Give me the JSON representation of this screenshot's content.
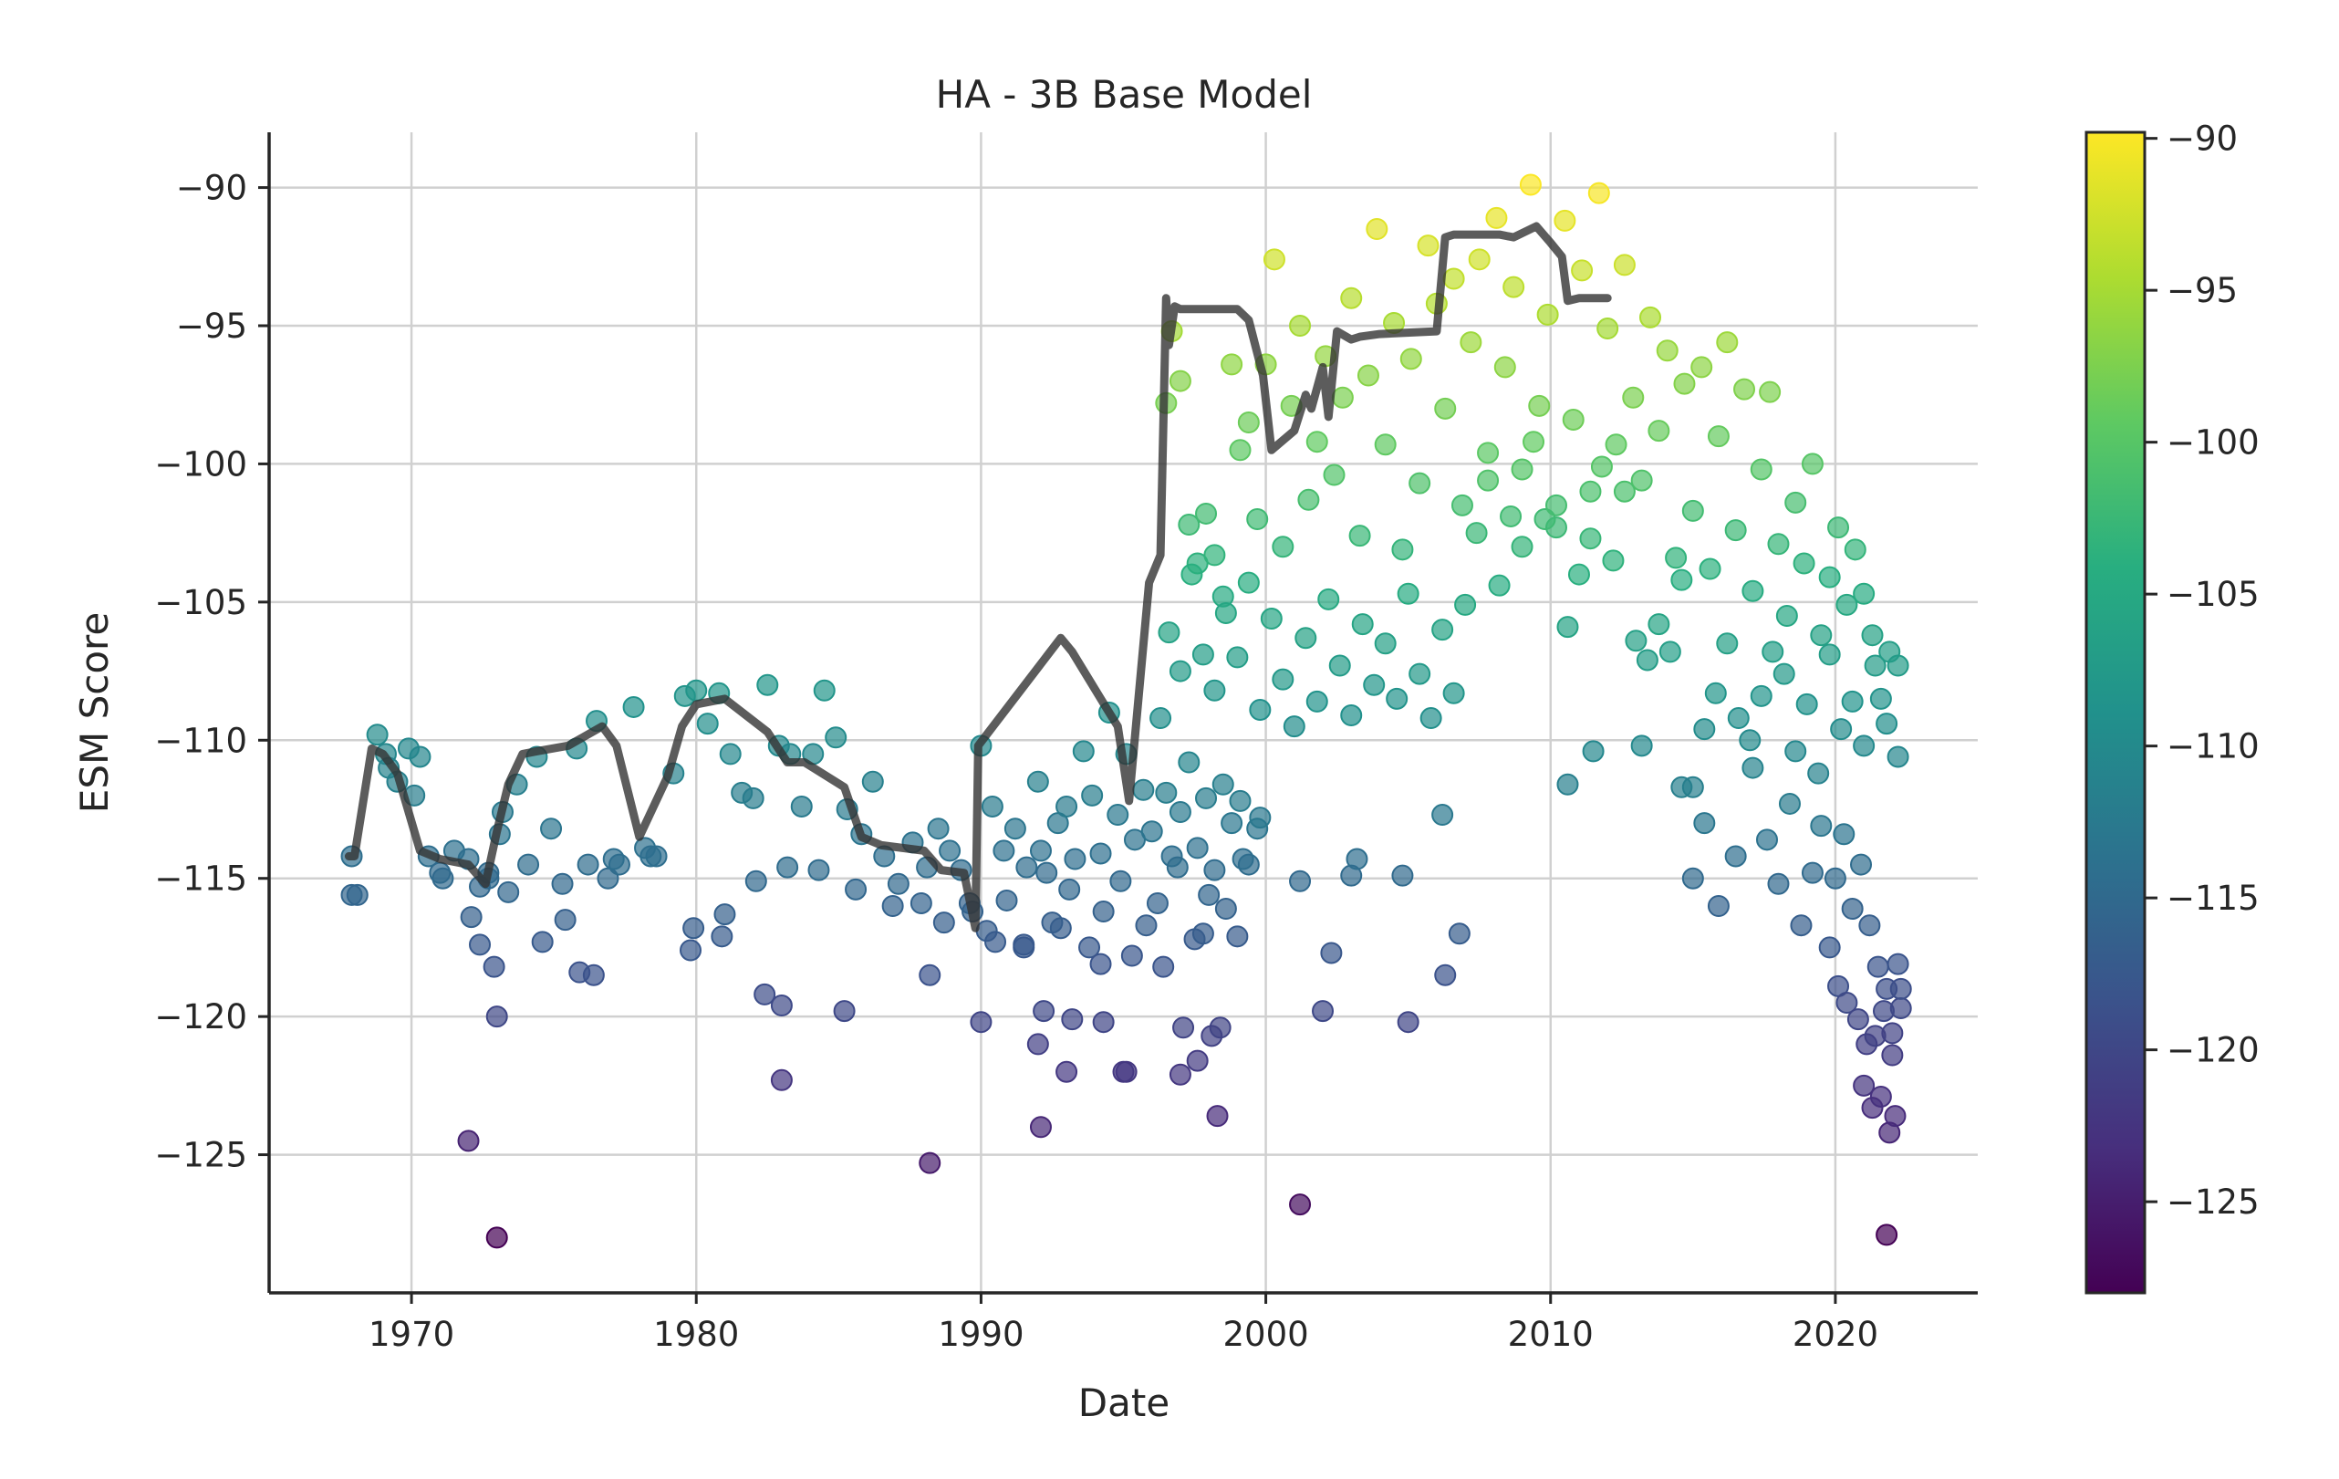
{
  "chart_data": {
    "type": "scatter",
    "title": "HA - 3B Base Model",
    "xlabel": "Date",
    "ylabel": "ESM Score",
    "xlim": [
      1965,
      2025
    ],
    "ylim": [
      -130,
      -88
    ],
    "x_ticks": [
      1970,
      1980,
      1990,
      2000,
      2010,
      2020
    ],
    "y_ticks": [
      -90,
      -95,
      -100,
      -105,
      -110,
      -115,
      -120,
      -125
    ],
    "x_tick_labels": [
      "1970",
      "1980",
      "1990",
      "2000",
      "2010",
      "2020"
    ],
    "y_tick_labels": [
      "−90",
      "−95",
      "−100",
      "−105",
      "−110",
      "−115",
      "−120",
      "−125"
    ],
    "grid": true,
    "colormap": "viridis",
    "colorbar": {
      "range": [
        -128,
        -89.8
      ],
      "ticks": [
        -90,
        -95,
        -100,
        -105,
        -110,
        -115,
        -120,
        -125
      ],
      "tick_labels": [
        "−90",
        "−95",
        "−100",
        "−105",
        "−110",
        "−115",
        "−120",
        "−125"
      ]
    },
    "colors": {
      "line": "#333333",
      "grid": "#d0d0d0",
      "axis": "#262626"
    },
    "trend_line": {
      "x": [
        1967.8,
        1968.0,
        1968.6,
        1969.0,
        1969.5,
        1970.3,
        1971.0,
        1972.0,
        1972.6,
        1973.0,
        1973.4,
        1973.9,
        1974.4,
        1975.5,
        1976.7,
        1977.2,
        1978.0,
        1979.0,
        1979.5,
        1980.0,
        1981.0,
        1982.5,
        1983.2,
        1983.8,
        1985.2,
        1985.8,
        1986.5,
        1988.0,
        1988.6,
        1989.4,
        1989.8,
        1989.9,
        1992.8,
        1993.2,
        1994.5,
        1994.8,
        1995.2,
        1995.9,
        1996.3,
        1996.5,
        1996.6,
        1996.8,
        1997.0,
        1999.0,
        1999.4,
        1999.9,
        2000.2,
        2001.0,
        2001.4,
        2001.6,
        2002.0,
        2002.2,
        2002.5,
        2003.0,
        2003.3,
        2004.0,
        2006.0,
        2006.3,
        2006.6,
        2008.2,
        2008.7,
        2009.5,
        2010.0,
        2010.4,
        2010.6,
        2011.0,
        2012.0
      ],
      "y": [
        -114.2,
        -114.2,
        -110.3,
        -110.5,
        -111.2,
        -114.0,
        -114.3,
        -114.5,
        -115.2,
        -113.3,
        -111.6,
        -110.5,
        -110.4,
        -110.2,
        -109.5,
        -110.2,
        -113.5,
        -111.3,
        -109.5,
        -108.7,
        -108.5,
        -109.7,
        -110.8,
        -110.8,
        -111.7,
        -113.5,
        -113.8,
        -114.0,
        -114.7,
        -114.8,
        -116.8,
        -110.2,
        -106.3,
        -106.8,
        -109.0,
        -109.5,
        -112.2,
        -104.3,
        -103.3,
        -94.0,
        -95.7,
        -94.3,
        -94.4,
        -94.4,
        -94.8,
        -96.8,
        -99.5,
        -98.8,
        -97.5,
        -98.0,
        -96.5,
        -98.3,
        -95.2,
        -95.5,
        -95.4,
        -95.3,
        -95.2,
        -91.8,
        -91.7,
        -91.7,
        -91.8,
        -91.4,
        -92.0,
        -92.5,
        -94.1,
        -94.0,
        -94.0
      ]
    },
    "series": [
      {
        "x": [
          1967.9,
          1968.1,
          1968.8,
          1969.1,
          1969.5,
          1969.9,
          1970.3,
          1970.6,
          1971.1,
          1971.5,
          1972.0,
          1972.4,
          1972.7,
          1973.1,
          1973.4,
          1973.7,
          1974.1,
          1974.4,
          1974.9,
          1975.3,
          1975.8,
          1976.2,
          1976.5,
          1976.9,
          1977.3,
          1977.8,
          1978.2,
          1978.6,
          1979.2,
          1979.6,
          1980.0,
          1980.4,
          1980.8,
          1981.2,
          1981.6,
          1982.0,
          1982.5,
          1982.9,
          1983.3,
          1983.7,
          1984.1,
          1984.5,
          1984.9,
          1985.3,
          1985.8,
          1986.2,
          1986.6,
          1987.1,
          1987.6,
          1988.1,
          1988.5,
          1988.9,
          1989.3,
          1989.7,
          1967.9,
          1969.2,
          1970.1,
          1971.0,
          1972.1,
          1972.7,
          1973.2,
          1974.6,
          1975.4,
          1976.4,
          1977.1,
          1978.4,
          1979.8,
          1980.9,
          1982.1,
          1983.2,
          1984.3,
          1985.6,
          1986.9,
          1987.9,
          1988.7,
          1989.6,
          1972.4,
          1972.9,
          1973.0,
          1975.9,
          1979.9,
          1981.0,
          1982.4,
          1983.0,
          1985.2,
          1988.2,
          1972.0,
          1973.0,
          1983.0,
          1988.2
        ],
        "y": [
          -114.2,
          -115.6,
          -109.8,
          -110.5,
          -111.5,
          -110.3,
          -110.6,
          -114.2,
          -115.0,
          -114.0,
          -114.3,
          -115.3,
          -114.8,
          -113.4,
          -115.5,
          -111.6,
          -114.5,
          -110.6,
          -113.2,
          -115.2,
          -110.3,
          -114.5,
          -109.3,
          -115.0,
          -114.5,
          -108.8,
          -113.9,
          -114.2,
          -111.2,
          -108.4,
          -108.2,
          -109.4,
          -108.3,
          -110.5,
          -111.9,
          -112.1,
          -108.0,
          -110.2,
          -110.5,
          -112.4,
          -110.5,
          -108.2,
          -109.9,
          -112.5,
          -113.4,
          -111.5,
          -114.2,
          -115.2,
          -113.7,
          -114.6,
          -113.2,
          -114.0,
          -114.7,
          -116.2,
          -115.6,
          -111.0,
          -112.0,
          -114.8,
          -116.4,
          -115.0,
          -112.6,
          -117.3,
          -116.5,
          -118.5,
          -114.3,
          -114.2,
          -117.6,
          -117.1,
          -115.1,
          -114.6,
          -114.7,
          -115.4,
          -116.0,
          -115.9,
          -116.6,
          -115.9,
          -117.4,
          -118.2,
          -120.0,
          -118.4,
          -116.8,
          -116.3,
          -119.2,
          -119.6,
          -119.8,
          -118.5,
          -124.5,
          -128.0,
          -122.3,
          -125.3
        ]
      },
      {
        "x": [
          1990.0,
          1990.4,
          1990.8,
          1991.2,
          1991.6,
          1992.0,
          1992.3,
          1992.7,
          1993.0,
          1993.3,
          1993.6,
          1993.9,
          1994.2,
          1994.5,
          1994.8,
          1995.1,
          1995.4,
          1995.7,
          1996.0,
          1996.3,
          1996.5,
          1996.7,
          1997.0,
          1997.3,
          1997.6,
          1997.9,
          1998.2,
          1998.5,
          1998.8,
          1999.1,
          1999.4,
          1999.7,
          1990.2,
          1990.9,
          1991.5,
          1992.1,
          1992.5,
          1993.1,
          1993.8,
          1994.3,
          1994.9,
          1995.3,
          1995.8,
          1996.2,
          1996.9,
          1997.5,
          1998.0,
          1998.6,
          1999.2,
          1999.8,
          1990.0,
          1992.0,
          1993.2,
          1994.3,
          1995.1,
          1997.1,
          1997.6,
          1998.1,
          1998.4,
          1992.1,
          1992.2,
          1993.0,
          1995.0,
          1997.0,
          1998.3,
          1990.5,
          1991.5,
          1992.8,
          1994.2,
          1996.4,
          1997.8,
          1999.0
        ],
        "y": [
          -110.2,
          -112.4,
          -114.0,
          -113.2,
          -114.6,
          -111.5,
          -114.8,
          -113.0,
          -112.4,
          -114.3,
          -110.4,
          -112.0,
          -114.1,
          -109.0,
          -112.7,
          -110.5,
          -113.6,
          -111.8,
          -113.3,
          -109.2,
          -111.9,
          -114.2,
          -112.6,
          -110.8,
          -113.9,
          -112.1,
          -114.7,
          -111.6,
          -113.0,
          -112.2,
          -114.5,
          -113.2,
          -116.9,
          -115.8,
          -117.4,
          -114.0,
          -116.6,
          -115.4,
          -117.5,
          -116.2,
          -115.1,
          -117.8,
          -116.7,
          -115.9,
          -114.6,
          -117.2,
          -115.6,
          -116.1,
          -114.3,
          -112.8,
          -120.2,
          -121.0,
          -120.1,
          -120.2,
          -122.0,
          -120.4,
          -121.6,
          -120.7,
          -120.4,
          -124.0,
          -119.8,
          -122.0,
          -122.0,
          -122.1,
          -123.6,
          -117.3,
          -117.5,
          -116.8,
          -118.1,
          -118.2,
          -117.0,
          -117.1
        ]
      },
      {
        "x": [
          1996.5,
          1996.7,
          1997.0,
          1997.3,
          1997.6,
          1997.9,
          1998.2,
          1998.5,
          1998.8,
          1999.1,
          1999.4,
          1999.7,
          2000.0,
          2000.3,
          2000.6,
          2000.9,
          2001.2,
          2001.5,
          2001.8,
          2002.1,
          2002.4,
          2002.7,
          2003.0,
          2003.3,
          2003.6,
          2003.9,
          2004.2,
          2004.5,
          2004.8,
          2005.1,
          2005.4,
          2005.7,
          2006.0,
          2006.3,
          2006.6,
          2006.9,
          2007.2,
          2007.5,
          2007.8,
          2008.1,
          2008.4,
          2008.7,
          2009.0,
          2009.3,
          2009.6,
          2009.9,
          2010.2,
          2010.5,
          2010.8,
          2011.1,
          2011.4,
          2011.7,
          2012.0,
          2012.3,
          2012.6,
          2012.9,
          2013.2,
          2013.5,
          2013.8,
          2014.1,
          2014.4,
          2014.7,
          2015.0,
          2015.3,
          2015.6,
          2015.9,
          2016.2,
          2016.5,
          2016.8,
          2017.1,
          2017.4,
          2017.7,
          2018.0,
          2018.3,
          2018.6,
          2018.9,
          2019.2,
          2019.5,
          2019.8,
          2020.1,
          2020.4,
          2020.7,
          2021.0,
          2021.3,
          2021.6,
          2021.9,
          2022.2
        ],
        "y": [
          -97.8,
          -95.2,
          -97.0,
          -102.2,
          -103.6,
          -101.8,
          -103.3,
          -104.8,
          -96.4,
          -99.5,
          -98.5,
          -102.0,
          -96.4,
          -92.6,
          -103.0,
          -97.9,
          -95.0,
          -101.3,
          -99.2,
          -96.1,
          -100.4,
          -97.6,
          -94.0,
          -102.6,
          -96.8,
          -91.5,
          -99.3,
          -94.9,
          -103.1,
          -96.2,
          -100.7,
          -92.1,
          -94.2,
          -98.0,
          -93.3,
          -101.5,
          -95.6,
          -92.6,
          -99.6,
          -91.1,
          -96.5,
          -93.6,
          -100.2,
          -89.9,
          -97.9,
          -94.6,
          -102.3,
          -91.2,
          -98.4,
          -93.0,
          -101.0,
          -90.2,
          -95.1,
          -99.3,
          -92.8,
          -97.6,
          -100.6,
          -94.7,
          -98.8,
          -95.9,
          -103.4,
          -97.1,
          -101.7,
          -96.5,
          -103.8,
          -99.0,
          -95.6,
          -102.4,
          -97.3,
          -104.6,
          -100.2,
          -97.4,
          -102.9,
          -105.5,
          -101.4,
          -103.6,
          -100.0,
          -106.2,
          -104.1,
          -102.3,
          -105.1,
          -103.1,
          -104.7,
          -106.2,
          -108.5,
          -106.8,
          -107.3
        ]
      },
      {
        "x": [
          1996.6,
          1997.0,
          1997.4,
          1997.8,
          1998.2,
          1998.6,
          1999.0,
          1999.4,
          1999.8,
          2000.2,
          2000.6,
          2001.0,
          2001.4,
          2001.8,
          2002.2,
          2002.6,
          2003.0,
          2003.4,
          2003.8,
          2004.2,
          2004.6,
          2005.0,
          2005.4,
          2005.8,
          2006.2,
          2006.6,
          2007.0,
          2007.4,
          2007.8,
          2008.2,
          2008.6,
          2009.0,
          2009.4,
          2009.8,
          2010.2,
          2010.6,
          2011.0,
          2011.4,
          2011.8,
          2012.2,
          2012.6,
          2013.0,
          2013.4,
          2013.8,
          2014.2,
          2014.6,
          2015.0,
          2015.4,
          2015.8,
          2016.2,
          2016.6,
          2017.0,
          2017.4,
          2017.8,
          2018.2,
          2018.6,
          2019.0,
          2019.4,
          2019.8,
          2020.2,
          2020.6,
          2021.0,
          2021.4,
          2021.8,
          2022.2
        ],
        "y": [
          -106.1,
          -107.5,
          -104.0,
          -106.9,
          -108.2,
          -105.4,
          -107.0,
          -104.3,
          -108.9,
          -105.6,
          -107.8,
          -109.5,
          -106.3,
          -108.6,
          -104.9,
          -107.3,
          -109.1,
          -105.8,
          -108.0,
          -106.5,
          -108.5,
          -104.7,
          -107.6,
          -109.2,
          -106.0,
          -108.3,
          -105.1,
          -102.5,
          -100.6,
          -104.4,
          -101.9,
          -103.0,
          -99.2,
          -102.0,
          -101.5,
          -105.9,
          -104.0,
          -102.7,
          -100.1,
          -103.5,
          -101.0,
          -106.4,
          -107.1,
          -105.8,
          -106.8,
          -104.2,
          -111.7,
          -109.6,
          -108.3,
          -106.5,
          -109.2,
          -110.0,
          -108.4,
          -106.8,
          -107.6,
          -110.4,
          -108.7,
          -111.2,
          -106.9,
          -109.6,
          -108.6,
          -110.2,
          -107.3,
          -109.4,
          -110.6
        ]
      },
      {
        "x": [
          2001.2,
          2002.0,
          2002.3,
          2003.0,
          2003.2,
          2004.8,
          2005.0,
          2006.2,
          2006.3,
          2006.8,
          2010.6,
          2011.5,
          2013.2,
          2014.6,
          2015.0,
          2015.4,
          2015.9,
          2016.5,
          2017.1,
          2017.6,
          2018.0,
          2018.4,
          2018.8,
          2019.2,
          2019.5,
          2019.8,
          2020.0,
          2020.3,
          2020.6,
          2020.9,
          2021.2,
          2021.5,
          2021.8,
          2022.0,
          2022.2,
          2022.3,
          2020.1,
          2020.4,
          2020.8,
          2021.1,
          2021.4,
          2021.7,
          2022.0,
          2022.3,
          2021.0,
          2021.3,
          2021.6,
          2021.9,
          2022.1,
          2001.2,
          2021.8
        ],
        "y": [
          -115.1,
          -119.8,
          -117.7,
          -114.9,
          -114.3,
          -114.9,
          -120.2,
          -112.7,
          -118.5,
          -117.0,
          -111.6,
          -110.4,
          -110.2,
          -111.7,
          -115.0,
          -113.0,
          -116.0,
          -114.2,
          -111.0,
          -113.6,
          -115.2,
          -112.3,
          -116.7,
          -114.8,
          -113.1,
          -117.5,
          -115.0,
          -113.4,
          -116.1,
          -114.5,
          -116.7,
          -118.2,
          -119.0,
          -120.6,
          -118.1,
          -119.7,
          -118.9,
          -119.5,
          -120.1,
          -121.0,
          -120.7,
          -119.8,
          -121.4,
          -119.0,
          -122.5,
          -123.3,
          -122.9,
          -124.2,
          -123.6,
          -126.8,
          -127.9
        ]
      }
    ]
  }
}
